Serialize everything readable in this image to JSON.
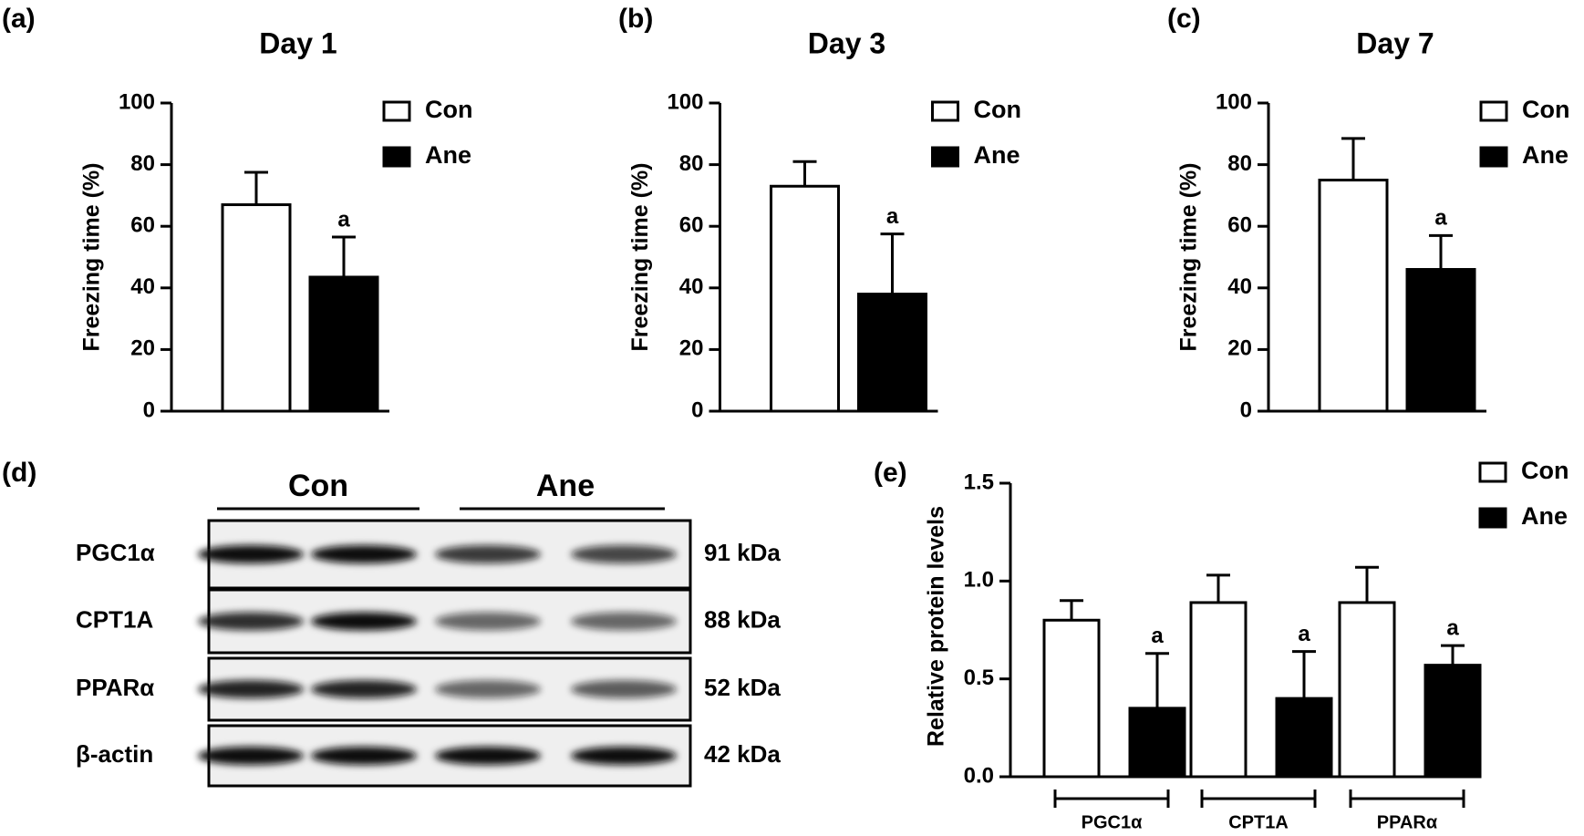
{
  "chart_data": [
    {
      "type": "bar",
      "panel_label": "(a)",
      "title": "Day 1",
      "y_label": "Freezing time (%)",
      "categories": [
        null
      ],
      "series": [
        {
          "name": "Con",
          "color": "#ffffff",
          "values": [
            67
          ],
          "errors": [
            10.5
          ]
        },
        {
          "name": "Ane",
          "color": "#000000",
          "values": [
            43.5
          ],
          "errors": [
            13
          ],
          "annotations": [
            "a"
          ]
        }
      ],
      "ylim": [
        0,
        100
      ],
      "yticks": [
        0,
        20,
        40,
        60,
        80,
        100
      ],
      "legend": "top-right"
    },
    {
      "type": "bar",
      "panel_label": "(b)",
      "title": "Day 3",
      "y_label": "Freezing time (%)",
      "categories": [
        null
      ],
      "series": [
        {
          "name": "Con",
          "color": "#ffffff",
          "values": [
            73
          ],
          "errors": [
            8
          ]
        },
        {
          "name": "Ane",
          "color": "#000000",
          "values": [
            38
          ],
          "errors": [
            19.5
          ],
          "annotations": [
            "a"
          ]
        }
      ],
      "ylim": [
        0,
        100
      ],
      "yticks": [
        0,
        20,
        40,
        60,
        80,
        100
      ],
      "legend": "top-right"
    },
    {
      "type": "bar",
      "panel_label": "(c)",
      "title": "Day 7",
      "y_label": "Freezing time (%)",
      "categories": [
        null
      ],
      "series": [
        {
          "name": "Con",
          "color": "#ffffff",
          "values": [
            75
          ],
          "errors": [
            13.5
          ]
        },
        {
          "name": "Ane",
          "color": "#000000",
          "values": [
            46
          ],
          "errors": [
            11
          ],
          "annotations": [
            "a"
          ]
        }
      ],
      "ylim": [
        0,
        100
      ],
      "yticks": [
        0,
        20,
        40,
        60,
        80,
        100
      ],
      "legend": "top-right"
    },
    {
      "type": "bar",
      "panel_label": "(e)",
      "y_label": "Relative protein levels",
      "categories": [
        "PGC1α",
        "CPT1A",
        "PPARα"
      ],
      "series": [
        {
          "name": "Con",
          "color": "#ffffff",
          "values": [
            0.8,
            0.89,
            0.89
          ],
          "errors": [
            0.1,
            0.14,
            0.18
          ]
        },
        {
          "name": "Ane",
          "color": "#000000",
          "values": [
            0.35,
            0.4,
            0.57
          ],
          "errors": [
            0.28,
            0.24,
            0.1
          ],
          "annotations": [
            "a",
            "a",
            "a"
          ]
        }
      ],
      "ylim": [
        0,
        1.5
      ],
      "yticks": [
        {
          "value": 0,
          "label": "0.0"
        },
        0.5,
        {
          "value": 1,
          "label": "1.0"
        },
        1.5
      ],
      "legend": "top-right"
    }
  ],
  "blot": {
    "panel_label": "(d)",
    "groups": [
      "Con",
      "Ane"
    ],
    "rows": [
      {
        "protein": "PGC1α",
        "size": "91 kDa"
      },
      {
        "protein": "CPT1A",
        "size": "88 kDa"
      },
      {
        "protein": "PPARα",
        "size": "52 kDa"
      },
      {
        "protein": "β-actin",
        "size": "42 kDa"
      }
    ]
  }
}
